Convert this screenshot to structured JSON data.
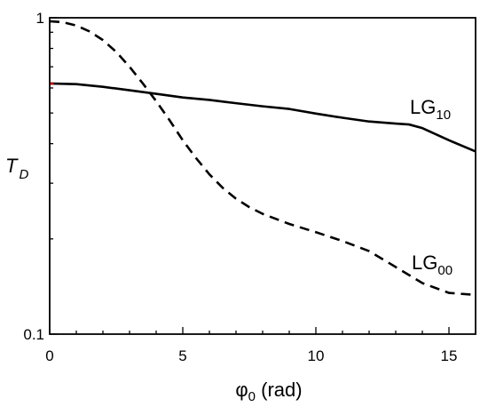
{
  "chart_data": {
    "type": "line",
    "xlabel": {
      "main": "φ",
      "sub": "0",
      "tail": " (rad)"
    },
    "ylabel": {
      "main": "T",
      "sub": "D"
    },
    "xlim": [
      0,
      16
    ],
    "ylim": [
      0.1,
      1
    ],
    "yscale": "log",
    "xticks": [
      0,
      5,
      10,
      15
    ],
    "xtick_labels": [
      "0",
      "5",
      "10",
      "15"
    ],
    "yticks": [
      0.1,
      1
    ],
    "ytick_labels": [
      "0.1",
      "1"
    ],
    "grid": false,
    "series": [
      {
        "name": "LG10",
        "label_main": "LG",
        "label_sub": "10",
        "style": "solid",
        "color": "#000000",
        "start_color": "#cc0000",
        "x": [
          0,
          1,
          2,
          3,
          4,
          5,
          6,
          7,
          8,
          9,
          10,
          11,
          12,
          13,
          13.5,
          14,
          15,
          16
        ],
        "y": [
          0.62,
          0.617,
          0.605,
          0.59,
          0.575,
          0.56,
          0.55,
          0.537,
          0.525,
          0.515,
          0.498,
          0.483,
          0.47,
          0.463,
          0.46,
          0.448,
          0.41,
          0.378
        ]
      },
      {
        "name": "LG00",
        "label_main": "LG",
        "label_sub": "00",
        "style": "dashed",
        "color": "#000000",
        "x": [
          0,
          0.5,
          1,
          1.5,
          2,
          2.5,
          3,
          3.5,
          4,
          4.5,
          5,
          5.5,
          6,
          6.5,
          7,
          7.5,
          8,
          9,
          10,
          11,
          12,
          13,
          14,
          15,
          16
        ],
        "y": [
          0.975,
          0.968,
          0.945,
          0.905,
          0.85,
          0.78,
          0.7,
          0.62,
          0.545,
          0.475,
          0.41,
          0.36,
          0.32,
          0.29,
          0.268,
          0.252,
          0.24,
          0.223,
          0.21,
          0.197,
          0.183,
          0.163,
          0.145,
          0.135,
          0.133
        ]
      }
    ]
  }
}
